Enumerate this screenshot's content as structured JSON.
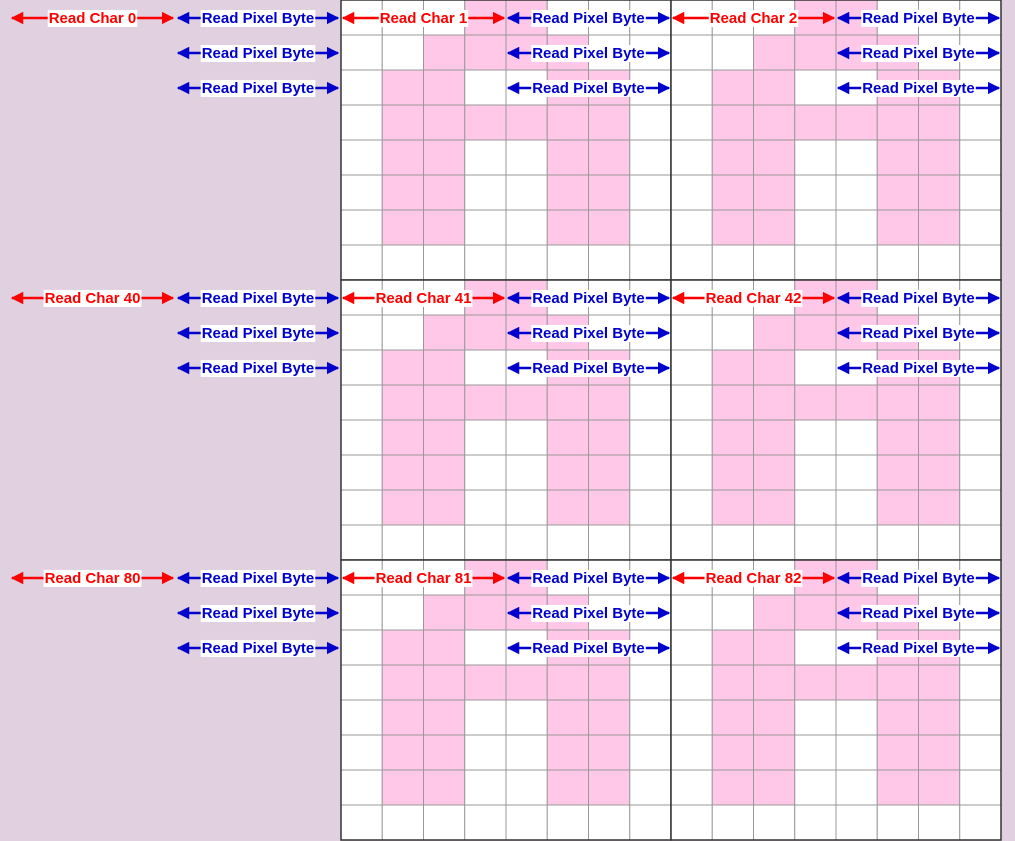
{
  "blocks": [
    {
      "row_label": "Read Char 0",
      "row_byte_labels": [
        "Read Pixel Byte",
        "Read Pixel Byte",
        "Read Pixel Byte"
      ],
      "chars": [
        {
          "label": "Read Char 1",
          "byte_labels": [
            "Read Pixel Byte",
            "Read Pixel Byte",
            "Read Pixel Byte"
          ]
        },
        {
          "label": "Read Char 2",
          "byte_labels": [
            "Read Pixel Byte",
            "Read Pixel Byte",
            "Read Pixel Byte"
          ]
        }
      ]
    },
    {
      "row_label": "Read Char 40",
      "row_byte_labels": [
        "Read Pixel Byte",
        "Read Pixel Byte",
        "Read Pixel Byte"
      ],
      "chars": [
        {
          "label": "Read Char 41",
          "byte_labels": [
            "Read Pixel Byte",
            "Read Pixel Byte",
            "Read Pixel Byte"
          ]
        },
        {
          "label": "Read Char 42",
          "byte_labels": [
            "Read Pixel Byte",
            "Read Pixel Byte",
            "Read Pixel Byte"
          ]
        }
      ]
    },
    {
      "row_label": "Read Char 80",
      "row_byte_labels": [
        "Read Pixel Byte",
        "Read Pixel Byte",
        "Read Pixel Byte"
      ],
      "chars": [
        {
          "label": "Read Char 81",
          "byte_labels": [
            "Read Pixel Byte",
            "Read Pixel Byte",
            "Read Pixel Byte"
          ]
        },
        {
          "label": "Read Char 82",
          "byte_labels": [
            "Read Pixel Byte",
            "Read Pixel Byte",
            "Read Pixel Byte"
          ]
        }
      ]
    }
  ]
}
